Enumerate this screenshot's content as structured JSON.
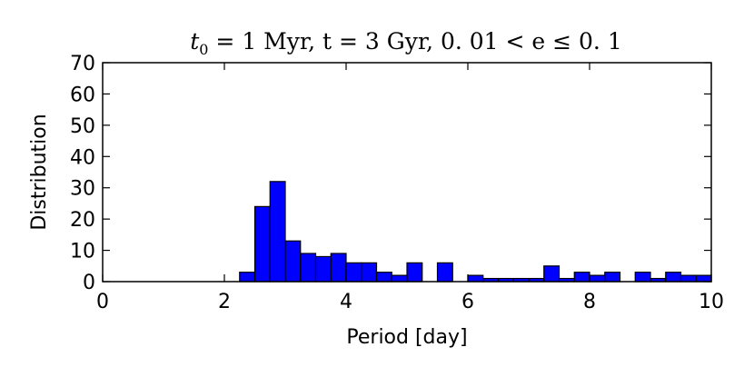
{
  "chart_data": {
    "type": "bar",
    "title": "t0 = 1 Myr, t = 3 Gyr, 0.01 < e ≤ 0.1",
    "title_parts": {
      "t0_var": "t",
      "t0_sub": "0",
      "t0_rest": " = 1 Myr, ",
      "t_part": "t = 3 Gyr, ",
      "e_part": "0. 01 < e ≤ 0. 1"
    },
    "xlabel": "Period [day]",
    "ylabel": "Distribution",
    "xlim": [
      0,
      10
    ],
    "ylim": [
      0,
      70
    ],
    "xticks": [
      0,
      2,
      4,
      6,
      8,
      10
    ],
    "yticks": [
      0,
      10,
      20,
      30,
      40,
      50,
      60,
      70
    ],
    "bin_width": 0.25,
    "bar_color": "#0000ff",
    "bar_edge_color": "#000000",
    "bins_start": [
      2.25,
      2.5,
      2.75,
      3.0,
      3.25,
      3.5,
      3.75,
      4.0,
      4.25,
      4.5,
      4.75,
      5.0,
      5.25,
      5.5,
      5.75,
      6.0,
      6.25,
      6.5,
      6.75,
      7.0,
      7.25,
      7.5,
      7.75,
      8.0,
      8.25,
      8.5,
      8.75,
      9.0,
      9.25,
      9.5,
      9.75
    ],
    "values": [
      3,
      24,
      32,
      13,
      9,
      8,
      9,
      6,
      6,
      3,
      2,
      6,
      0,
      6,
      0,
      2,
      1,
      1,
      1,
      1,
      5,
      1,
      3,
      2,
      3,
      0,
      3,
      1,
      3,
      2,
      2
    ]
  }
}
